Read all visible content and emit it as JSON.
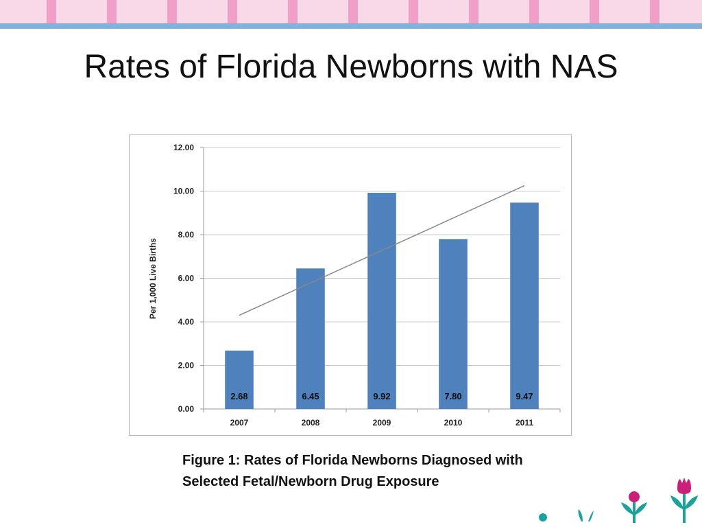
{
  "slide": {
    "title": "Rates of Florida Newborns with NAS",
    "caption": "Figure 1: Rates of Florida Newborns Diagnosed with Selected Fetal/Newborn Drug Exposure"
  },
  "colors": {
    "bar": "#4f81bd",
    "trendline": "#888888",
    "pink": "#f0a0c8",
    "pink_light": "#f9d9e8",
    "blue_rule": "#7fb2dc"
  },
  "chart_data": {
    "type": "bar",
    "title": "",
    "xlabel": "",
    "ylabel": "Per 1,000 Live Births",
    "categories": [
      "2007",
      "2008",
      "2009",
      "2010",
      "2011"
    ],
    "values": [
      2.68,
      6.45,
      9.92,
      7.8,
      9.47
    ],
    "data_labels": [
      "2.68",
      "6.45",
      "9.92",
      "7.80",
      "9.47"
    ],
    "ylim": [
      0,
      12
    ],
    "yticks": [
      "0.00",
      "2.00",
      "4.00",
      "6.00",
      "8.00",
      "10.00",
      "12.00"
    ],
    "grid": true,
    "legend": "none",
    "trendline": {
      "type": "linear",
      "start": 4.3,
      "end": 10.25
    }
  }
}
